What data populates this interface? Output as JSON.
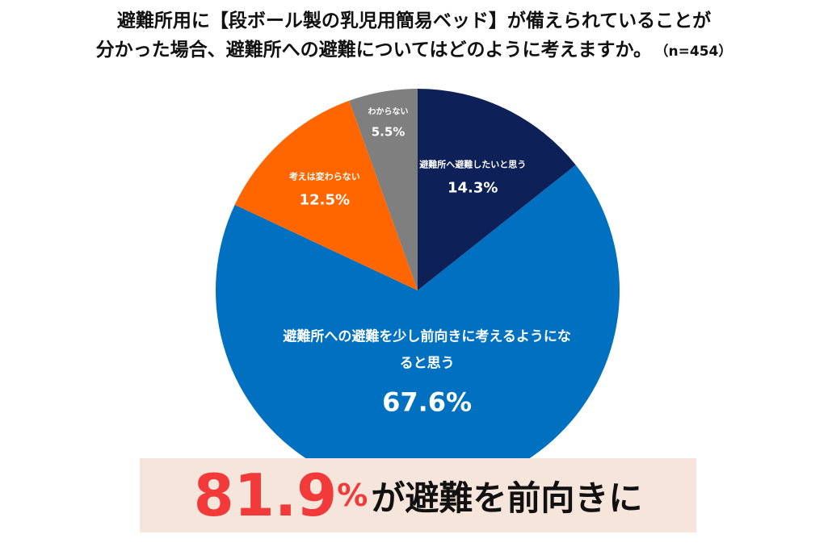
{
  "chart_data": {
    "type": "pie",
    "title": [
      "避難所用に【段ボール製の乳児用簡易ベッド】が備えられていることが",
      "分かった場合、避難所への避難についてはどのように考えますか。"
    ],
    "subtitle": "（n=454）",
    "categories": [
      "避難所へ避難したいと思う",
      "避難所への避難を少し前向きに考えるようになると思う",
      "考えは変わらない",
      "わからない"
    ],
    "values": [
      14.3,
      67.6,
      12.5,
      5.5
    ],
    "value_labels": [
      "14.3%",
      "67.6%",
      "12.5%",
      "5.5%"
    ],
    "colors": [
      "#0d2158",
      "#0070c0",
      "#ff6600",
      "#7f7f7f"
    ],
    "annotation": {
      "number": "81.9",
      "unit": "%",
      "text": "が避難を前向きに"
    }
  }
}
